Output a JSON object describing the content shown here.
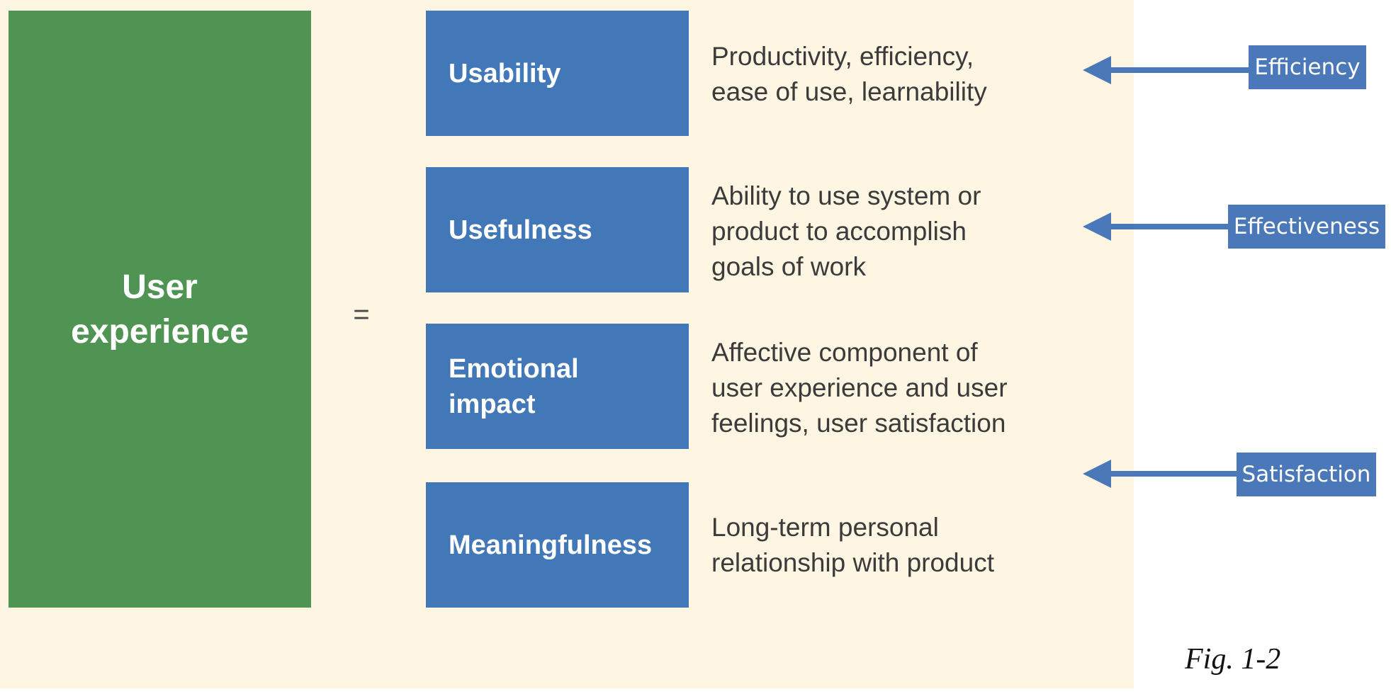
{
  "main_concept": {
    "lines": [
      "User",
      "experience"
    ]
  },
  "equals_sign": "=",
  "components": [
    {
      "label_lines": [
        "Usability"
      ],
      "desc_lines": [
        "Productivity, efficiency,",
        "ease of use, learnability"
      ]
    },
    {
      "label_lines": [
        "Usefulness"
      ],
      "desc_lines": [
        "Ability to use system or",
        "product to accomplish",
        "goals of work"
      ]
    },
    {
      "label_lines": [
        "Emotional",
        "impact"
      ],
      "desc_lines": [
        "Affective component of",
        "user experience and user",
        "feelings, user satisfaction"
      ]
    },
    {
      "label_lines": [
        "Meaningfulness"
      ],
      "desc_lines": [
        "Long-term personal",
        "relationship with  product"
      ]
    }
  ],
  "metrics": [
    "Efficiency",
    "Effectiveness",
    "Satisfaction"
  ],
  "figure_caption": "Fig.  1-2",
  "colors": {
    "panel_background": "#fef6e2",
    "main_block": "#509454",
    "component_box": "#4278b8",
    "metric_label": "#4a78b8",
    "arrow": "#4a78b8"
  }
}
